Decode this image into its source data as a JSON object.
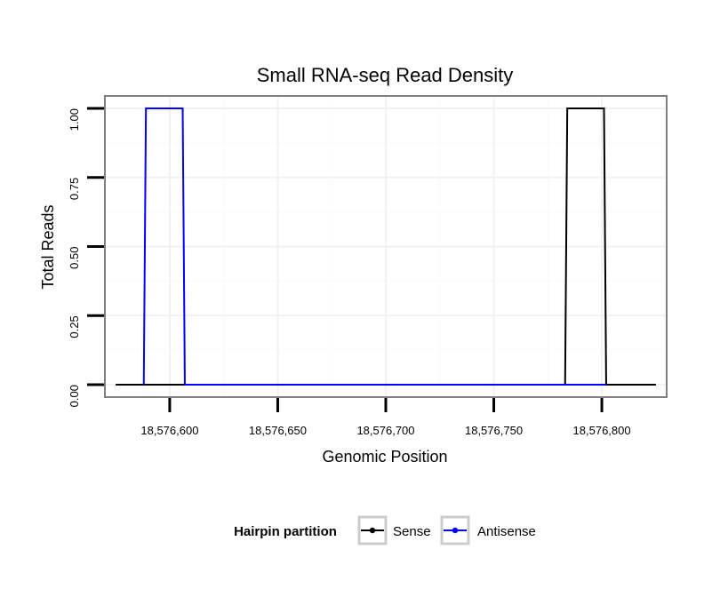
{
  "chart_data": {
    "type": "line",
    "title": "Small RNA-seq Read Density",
    "xlabel": "Genomic Position",
    "ylabel": "Total Reads",
    "xlim": [
      18576570,
      18576830
    ],
    "ylim": [
      -0.045,
      1.045
    ],
    "x_ticks": [
      18576600,
      18576650,
      18576700,
      18576750,
      18576800
    ],
    "x_tick_labels": [
      "18,576,600",
      "18,576,650",
      "18,576,700",
      "18,576,750",
      "18,576,800"
    ],
    "y_ticks": [
      0,
      0.25,
      0.5,
      0.75,
      1.0
    ],
    "y_tick_labels": [
      "0.00",
      "0.25",
      "0.50",
      "0.75",
      "1.00"
    ],
    "grid": true,
    "legend": {
      "title": "Hairpin partition",
      "position": "bottom",
      "entries": [
        "Sense",
        "Antisense"
      ]
    },
    "series": [
      {
        "name": "Sense",
        "color": "#000000",
        "x": [
          18576575,
          18576783,
          18576784,
          18576801,
          18576802,
          18576825
        ],
        "y": [
          0,
          0,
          1,
          1,
          0,
          0
        ]
      },
      {
        "name": "Antisense",
        "color": "#0000ff",
        "x": [
          18576588,
          18576589,
          18576606,
          18576607,
          18576784,
          18576802
        ],
        "y": [
          0,
          1,
          1,
          0,
          0,
          0
        ]
      }
    ]
  }
}
